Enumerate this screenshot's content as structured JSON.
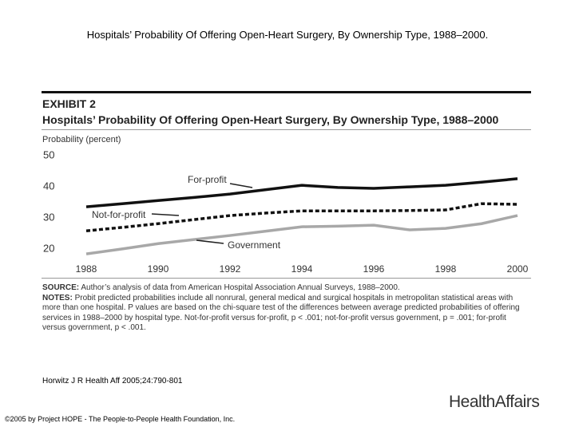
{
  "slide_title": "Hospitals’ Probability Of Offering Open-Heart Surgery, By Ownership Type, 1988–2000.",
  "chart_data": {
    "type": "line",
    "exhibit": "EXHIBIT 2",
    "title": "Hospitals’ Probability Of Offering Open-Heart Surgery, By Ownership Type, 1988–2000",
    "y_label": "Probability (percent)",
    "x": [
      1988,
      1989,
      1990,
      1991,
      1992,
      1993,
      1994,
      1995,
      1996,
      1997,
      1998,
      1999,
      2000
    ],
    "series": [
      {
        "name": "For-profit",
        "color": "#111111",
        "dashed": false,
        "values": [
          33.6,
          34.6,
          35.6,
          36.6,
          37.7,
          39.1,
          40.5,
          39.8,
          39.5,
          40,
          40.5,
          41.5,
          42.6
        ]
      },
      {
        "name": "Not-for-profit",
        "color": "#111111",
        "dashed": true,
        "values": [
          25.9,
          27,
          28.2,
          29.5,
          30.8,
          31.6,
          32.3,
          32.3,
          32.3,
          32.4,
          32.6,
          34.6,
          34.4
        ]
      },
      {
        "name": "Government",
        "color": "#a8a8a8",
        "dashed": false,
        "values": [
          18.5,
          20.1,
          21.8,
          23.1,
          24.4,
          25.8,
          27.2,
          27.4,
          27.7,
          26.2,
          26.7,
          28.2,
          30.8
        ]
      }
    ],
    "xlim": [
      1988,
      2000
    ],
    "xticks": [
      1988,
      1990,
      1992,
      1994,
      1996,
      1998,
      2000
    ],
    "ylim": [
      17,
      50
    ],
    "yticks": [
      20,
      30,
      40,
      50
    ],
    "source_label": "SOURCE:",
    "source": "Author’s analysis of data from American Hospital Association Annual Surveys, 1988–2000.",
    "notes_label": "NOTES:",
    "notes": "Probit predicted probabilities include all nonrural, general medical and surgical hospitals in metropolitan statistical areas with more than one hospital. P values are based on the chi-square test of the differences between average predicted probabilities of offering services in 1988–2000 by hospital type. Not-for-profit versus for-profit, p < .001; not-for-profit versus government, p = .001; for-profit versus government, p < .001."
  },
  "citation": "Horwitz J R Health Aff 2005;24:790-801",
  "logo": "HealthAffairs",
  "footer": "©2005 by Project HOPE - The People-to-People Health Foundation, Inc."
}
